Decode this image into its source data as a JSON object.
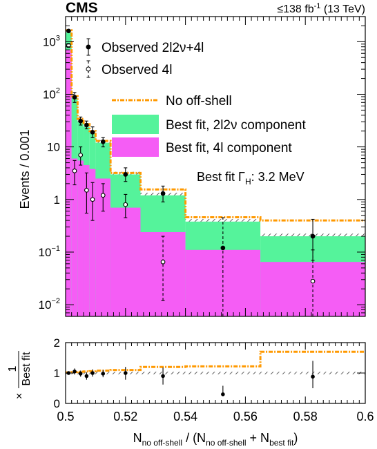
{
  "header": {
    "experiment": "CMS",
    "lumi": "≤138 fb",
    "lumi_exp": "-1",
    "energy": " (13 TeV)"
  },
  "annotation": {
    "prefix": "Best fit Γ",
    "sub": "H",
    "suffix": ": 3.2 MeV"
  },
  "colors": {
    "green": "#55f39b",
    "magenta": "#f55df5",
    "orange": "#ff9900",
    "hatch": "#333333"
  },
  "chart_data": [
    {
      "type": "histogram",
      "panel": "main",
      "ylabel": "Events / 0.001",
      "yscale": "log",
      "ylim": [
        0.006,
        3000
      ],
      "xlim": [
        0.5,
        0.6
      ],
      "yticks": [
        {
          "v": 1000,
          "base": "10",
          "exp": "3"
        },
        {
          "v": 100,
          "base": "10",
          "exp": "2"
        },
        {
          "v": 10,
          "base": "10",
          "exp": ""
        },
        {
          "v": 1,
          "base": "1",
          "exp": ""
        },
        {
          "v": 0.1,
          "base": "10",
          "exp": "−1"
        },
        {
          "v": 0.01,
          "base": "10",
          "exp": "−2"
        }
      ],
      "bin_edges": [
        0.5,
        0.502,
        0.504,
        0.506,
        0.508,
        0.51,
        0.515,
        0.525,
        0.54,
        0.565,
        0.6
      ],
      "series": [
        {
          "name": "Best fit, 2l2ν component",
          "kind": "stacked_fill",
          "color": "green",
          "values": [
            1500,
            85,
            30,
            24,
            18,
            12,
            3.0,
            1.2,
            0.38,
            0.2
          ]
        },
        {
          "name": "Best fit, 4l component",
          "kind": "fill",
          "color": "magenta",
          "values": [
            700,
            6,
            5.5,
            4.5,
            3.8,
            2.5,
            0.7,
            0.24,
            0.11,
            0.065
          ]
        },
        {
          "name": "No off-shell",
          "kind": "step_line",
          "color": "orange",
          "values": [
            1650,
            92,
            34,
            27,
            20,
            13,
            3.2,
            1.55,
            0.46,
            0.4
          ]
        },
        {
          "name": "Observed 2l2ν+4l",
          "kind": "points_filled",
          "points": [
            {
              "x": 0.501,
              "y": 1600,
              "lo": 1520,
              "hi": 1680
            },
            {
              "x": 0.503,
              "y": 88,
              "lo": 70,
              "hi": 108
            },
            {
              "x": 0.505,
              "y": 31,
              "lo": 26,
              "hi": 37
            },
            {
              "x": 0.507,
              "y": 26,
              "lo": 22,
              "hi": 31
            },
            {
              "x": 0.509,
              "y": 19,
              "lo": 15,
              "hi": 24
            },
            {
              "x": 0.5125,
              "y": 12.5,
              "lo": 10,
              "hi": 15
            },
            {
              "x": 0.52,
              "y": 3.0,
              "lo": 2.2,
              "hi": 4.0
            },
            {
              "x": 0.5325,
              "y": 1.3,
              "lo": 0.9,
              "hi": 1.8
            },
            {
              "x": 0.5525,
              "y": 0.12,
              "lo": 0.006,
              "hi": 0.45
            },
            {
              "x": 0.5825,
              "y": 0.2,
              "lo": 0.07,
              "hi": 0.42
            }
          ]
        },
        {
          "name": "Observed 4l",
          "kind": "points_open",
          "points": [
            {
              "x": 0.501,
              "y": 850,
              "lo": 780,
              "hi": 920
            },
            {
              "x": 0.503,
              "y": 3.5,
              "lo": 1.9,
              "hi": 5.5
            },
            {
              "x": 0.505,
              "y": 7.0,
              "lo": 4.5,
              "hi": 10
            },
            {
              "x": 0.507,
              "y": 1.5,
              "lo": 0.55,
              "hi": 3.2
            },
            {
              "x": 0.509,
              "y": 1.0,
              "lo": 0.4,
              "hi": 2.1
            },
            {
              "x": 0.5125,
              "y": 1.2,
              "lo": 0.6,
              "hi": 2.0
            },
            {
              "x": 0.52,
              "y": 0.8,
              "lo": 0.45,
              "hi": 1.25
            },
            {
              "x": 0.5325,
              "y": 0.065,
              "lo": 0.012,
              "hi": 0.2
            },
            {
              "x": 0.5825,
              "y": 0.028,
              "lo": 0.006,
              "hi": 0.11
            }
          ]
        }
      ],
      "legend": [
        {
          "label": "Observed 2l2ν+4l",
          "kind": "points_filled"
        },
        {
          "label": "Observed 4l",
          "kind": "points_open"
        },
        {
          "label": "No off-shell",
          "kind": "step_line"
        },
        {
          "label": "Best fit, 2l2ν component",
          "kind": "fill_green"
        },
        {
          "label": "Best fit, 4l component",
          "kind": "fill_magenta"
        }
      ]
    },
    {
      "type": "ratio",
      "panel": "ratio",
      "ylabel_num": "1",
      "ylabel_times": "×",
      "ylabel_den": "Best fit",
      "ylim": [
        0,
        2
      ],
      "yticks": [
        0,
        1,
        2
      ],
      "xlim": [
        0.5,
        0.6
      ],
      "xticks": [
        "0.5",
        "0.52",
        "0.54",
        "0.56",
        "0.58",
        "0.6"
      ],
      "xtick_values": [
        0.5,
        0.52,
        0.54,
        0.56,
        0.58,
        0.6
      ],
      "xlabel": {
        "N": "N",
        "sub1": "no off-shell",
        "mid": " / (N",
        "sub2": "no off-shell",
        "plus": " + N",
        "sub3": "best fit",
        "close": ")"
      },
      "bin_edges": [
        0.5,
        0.502,
        0.504,
        0.506,
        0.508,
        0.51,
        0.515,
        0.525,
        0.54,
        0.565,
        0.6
      ],
      "no_offshell_ratio": [
        1.02,
        1.03,
        1.04,
        1.05,
        1.06,
        1.08,
        1.1,
        1.2,
        1.22,
        1.7
      ],
      "points": [
        {
          "x": 0.501,
          "y": 1.0,
          "lo": 0.96,
          "hi": 1.04
        },
        {
          "x": 0.503,
          "y": 1.05,
          "lo": 0.95,
          "hi": 1.15
        },
        {
          "x": 0.505,
          "y": 0.98,
          "lo": 0.88,
          "hi": 1.08
        },
        {
          "x": 0.507,
          "y": 0.9,
          "lo": 0.78,
          "hi": 1.02
        },
        {
          "x": 0.509,
          "y": 1.0,
          "lo": 0.88,
          "hi": 1.12
        },
        {
          "x": 0.5125,
          "y": 0.98,
          "lo": 0.86,
          "hi": 1.1
        },
        {
          "x": 0.52,
          "y": 1.0,
          "lo": 0.78,
          "hi": 1.2
        },
        {
          "x": 0.5325,
          "y": 0.9,
          "lo": 0.62,
          "hi": 1.18
        },
        {
          "x": 0.5525,
          "y": 0.3,
          "lo": 0.25,
          "hi": 0.58
        },
        {
          "x": 0.5825,
          "y": 0.88,
          "lo": 0.5,
          "hi": 1.4
        }
      ]
    }
  ]
}
